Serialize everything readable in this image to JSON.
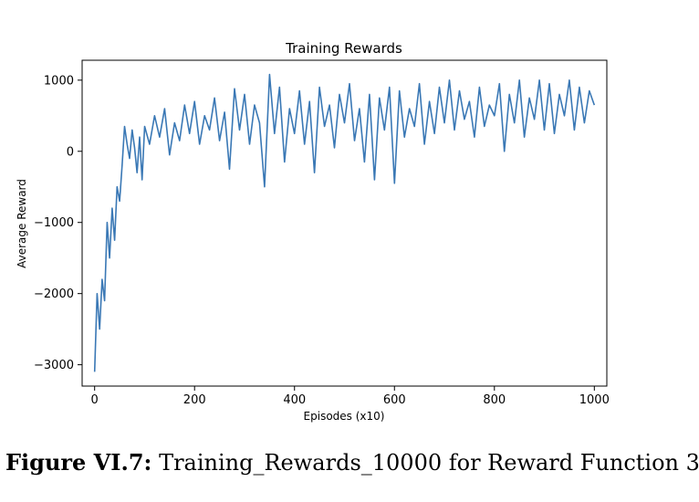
{
  "chart_data": {
    "type": "line",
    "title": "Training Rewards",
    "xlabel": "Episodes (x10)",
    "ylabel": "Average Reward",
    "xlim": [
      -25,
      1025
    ],
    "ylim": [
      -3300,
      1280
    ],
    "xticks": [
      0,
      200,
      400,
      600,
      800,
      1000
    ],
    "yticks": [
      -3000,
      -2000,
      -1000,
      0,
      1000
    ],
    "ytick_labels": [
      "−3000",
      "−2000",
      "−1000",
      "0",
      "1000"
    ],
    "grid": false,
    "line_color": "#3a78b5",
    "series": [
      {
        "x": [
          0,
          5,
          10,
          15,
          20,
          25,
          30,
          35,
          40,
          45,
          50,
          55,
          60,
          65,
          70,
          75,
          80,
          85,
          90,
          95,
          100,
          110,
          120,
          130,
          140,
          150,
          160,
          170,
          180,
          190,
          200,
          210,
          220,
          230,
          240,
          250,
          260,
          270,
          280,
          290,
          300,
          310,
          320,
          330,
          340,
          350,
          360,
          370,
          380,
          390,
          400,
          410,
          420,
          430,
          440,
          450,
          460,
          470,
          480,
          490,
          500,
          510,
          520,
          530,
          540,
          550,
          560,
          570,
          580,
          590,
          600,
          610,
          620,
          630,
          640,
          650,
          660,
          670,
          680,
          690,
          700,
          710,
          720,
          730,
          740,
          750,
          760,
          770,
          780,
          790,
          800,
          810,
          820,
          830,
          840,
          850,
          860,
          870,
          880,
          890,
          900,
          910,
          920,
          930,
          940,
          950,
          960,
          970,
          980,
          990,
          1000
        ],
        "values": [
          -3100,
          -2000,
          -2500,
          -1800,
          -2100,
          -1000,
          -1500,
          -800,
          -1250,
          -500,
          -700,
          -200,
          350,
          100,
          -100,
          300,
          50,
          -300,
          200,
          -400,
          350,
          100,
          500,
          200,
          600,
          -50,
          400,
          150,
          650,
          250,
          700,
          100,
          500,
          300,
          750,
          150,
          550,
          -250,
          880,
          300,
          800,
          100,
          650,
          400,
          -500,
          1080,
          250,
          900,
          -150,
          600,
          250,
          850,
          100,
          700,
          -300,
          900,
          350,
          650,
          50,
          800,
          400,
          950,
          150,
          600,
          -150,
          800,
          -400,
          750,
          300,
          900,
          -450,
          850,
          200,
          600,
          350,
          950,
          100,
          700,
          250,
          900,
          400,
          1000,
          300,
          850,
          450,
          700,
          200,
          900,
          350,
          650,
          500,
          950,
          0,
          800,
          400,
          1000,
          200,
          750,
          450,
          1000,
          300,
          950,
          250,
          800,
          500,
          1000,
          300,
          900,
          400,
          850,
          650
        ]
      }
    ]
  },
  "caption": {
    "label": "Figure VI.7:",
    "text": "Training_Rewards_10000 for Reward Function 3"
  }
}
